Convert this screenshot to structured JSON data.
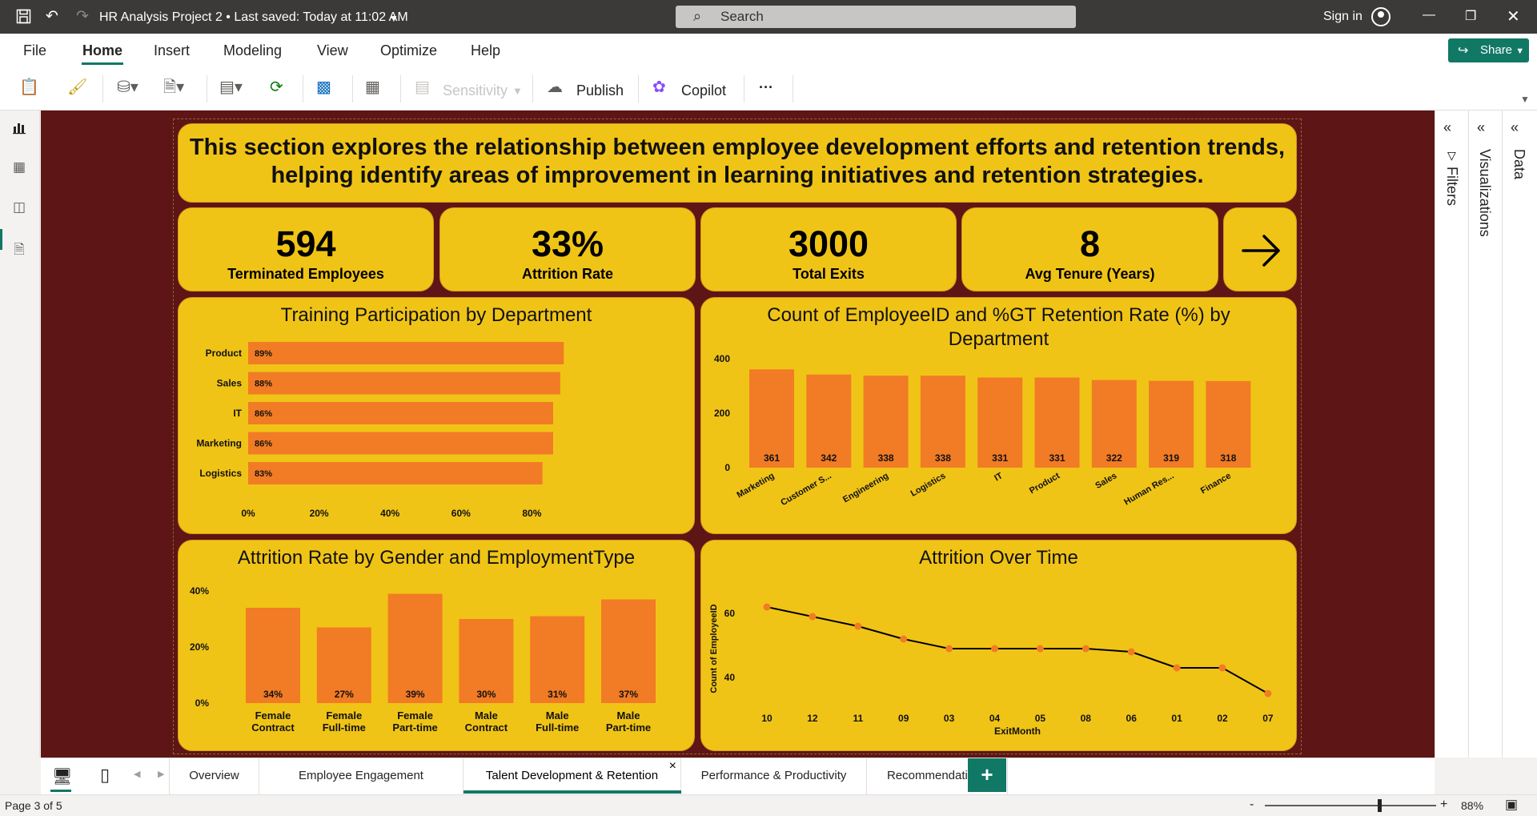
{
  "titlebar": {
    "title": "HR Analysis Project 2 • Last saved: Today at 11:02 AM",
    "search_placeholder": "Search",
    "signin": "Sign in"
  },
  "menu": {
    "items": [
      "File",
      "Home",
      "Insert",
      "Modeling",
      "View",
      "Optimize",
      "Help"
    ],
    "share": "Share"
  },
  "ribbon": {
    "sensitivity": "Sensitivity",
    "publish": "Publish",
    "copilot": "Copilot",
    "more": "···"
  },
  "report": {
    "banner": "This section explores the relationship between employee development efforts and retention trends, helping identify areas of improvement in learning initiatives and retention strategies.",
    "kpis": [
      {
        "value": "594",
        "label": "Terminated Employees"
      },
      {
        "value": "33%",
        "label": "Attrition Rate"
      },
      {
        "value": "3000",
        "label": "Total Exits"
      },
      {
        "value": "8",
        "label": "Avg Tenure (Years)"
      }
    ],
    "accent": "#f0c416",
    "bar_color": "#f27b25",
    "background": "#5e1515"
  },
  "chart_data": [
    {
      "type": "bar",
      "orientation": "horizontal",
      "title": "Training Participation by Department",
      "categories": [
        "Product",
        "Sales",
        "IT",
        "Marketing",
        "Logistics"
      ],
      "values": [
        89,
        88,
        86,
        86,
        83
      ],
      "labels": [
        "89%",
        "88%",
        "86%",
        "86%",
        "83%"
      ],
      "xticks": [
        "0%",
        "20%",
        "40%",
        "60%",
        "80%"
      ],
      "xlim": [
        0,
        100
      ]
    },
    {
      "type": "bar",
      "title": "Count of EmployeeID and %GT Retention Rate (%) by Department",
      "categories": [
        "Marketing",
        "Customer S...",
        "Engineering",
        "Logistics",
        "IT",
        "Product",
        "Sales",
        "Human Res...",
        "Finance"
      ],
      "values": [
        361,
        342,
        338,
        338,
        331,
        331,
        322,
        319,
        318
      ],
      "yticks": [
        "0",
        "200",
        "400"
      ],
      "ylim": [
        0,
        400
      ]
    },
    {
      "type": "bar",
      "title": "Attrition Rate by Gender and EmploymentType",
      "categories": [
        [
          "Female",
          "Contract"
        ],
        [
          "Female",
          "Full-time"
        ],
        [
          "Female",
          "Part-time"
        ],
        [
          "Male",
          "Contract"
        ],
        [
          "Male",
          "Full-time"
        ],
        [
          "Male",
          "Part-time"
        ]
      ],
      "values": [
        34,
        27,
        39,
        30,
        31,
        37
      ],
      "labels": [
        "34%",
        "27%",
        "39%",
        "30%",
        "31%",
        "37%"
      ],
      "yticks": [
        "0%",
        "20%",
        "40%"
      ],
      "ylim": [
        0,
        40
      ]
    },
    {
      "type": "line",
      "title": "Attrition Over Time",
      "xlabel": "ExitMonth",
      "ylabel": "Count of EmployeeID",
      "x": [
        "10",
        "12",
        "11",
        "09",
        "03",
        "04",
        "05",
        "08",
        "06",
        "01",
        "02",
        "07"
      ],
      "values": [
        62,
        59,
        56,
        52,
        49,
        49,
        49,
        49,
        48,
        43,
        43,
        35
      ],
      "yticks": [
        "40",
        "60"
      ],
      "ylim": [
        35,
        62
      ],
      "line_color": "#000000",
      "marker_color": "#f27b25"
    }
  ],
  "panes": {
    "filters": "Filters",
    "visualizations": "Visualizations",
    "data": "Data"
  },
  "tabs": [
    "Overview",
    "Employee Engagement",
    "Talent Development & Retention",
    "Performance & Productivity",
    "Recommendations"
  ],
  "tab_close": "×",
  "add_tab": "+",
  "status": {
    "page": "Page 3 of 5",
    "zoom": "88%",
    "minus": "-",
    "plus": "+"
  }
}
